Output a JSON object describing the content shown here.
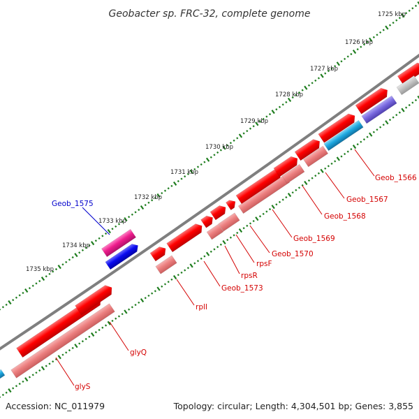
{
  "title": "Geobacter sp. FRC-32, complete genome",
  "footer": {
    "accession": "Accession: NC_011979",
    "summary": "Topology: circular; Length: 4,304,501 bp; Genes: 3,855"
  },
  "kbp_ticks": [
    "1725 kbp",
    "1726 kbp",
    "1727 kbp",
    "1728 kbp",
    "1729 kbp",
    "1730 kbp",
    "1731 kbp",
    "1732 kbp",
    "1733 kbp",
    "1734 kbp",
    "1735 kbp"
  ],
  "gene_labels": [
    {
      "text": "Geob_1566",
      "color": "#d40000"
    },
    {
      "text": "Geob_1567",
      "color": "#d40000"
    },
    {
      "text": "Geob_1568",
      "color": "#d40000"
    },
    {
      "text": "Geob_1569",
      "color": "#d40000"
    },
    {
      "text": "Geob_1570",
      "color": "#d40000"
    },
    {
      "text": "rpsF",
      "color": "#d40000"
    },
    {
      "text": "rpsR",
      "color": "#d40000"
    },
    {
      "text": "Geob_1573",
      "color": "#d40000"
    },
    {
      "text": "rplI",
      "color": "#d40000"
    },
    {
      "text": "glyQ",
      "color": "#d40000"
    },
    {
      "text": "glyS",
      "color": "#d40000"
    },
    {
      "text": "Geob_1575",
      "color": "#0000cc"
    }
  ],
  "colors": {
    "backbone": "#808080",
    "tick": "#1e7d1e",
    "gene_red": "#ff0000",
    "gene_pink": "#ee7e7e",
    "gene_magenta": "#ee1c8c",
    "gene_blue": "#0a0af0",
    "gene_cyan": "#1ea8e0",
    "gene_purple": "#7a6ae0",
    "gene_grey": "#c4c4c4"
  }
}
